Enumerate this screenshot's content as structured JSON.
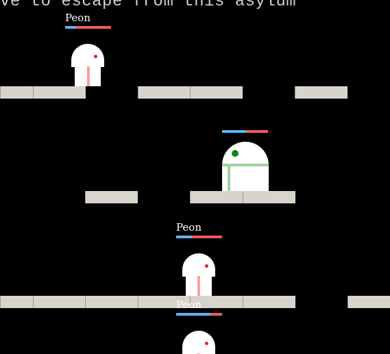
{
  "banner": {
    "text": "ve to escape from this asylum"
  },
  "colors": {
    "background": "#000000",
    "platform": "#d8d4cb",
    "mana": "#5fb4ef",
    "health": "#ef5b5b",
    "peon_eye": "#e0201e",
    "peon_stripe": "#ff9e9e",
    "boss_eye": "#0a8a1a",
    "boss_stripe": "#9fd19c"
  },
  "units": [
    {
      "name": "Peon",
      "kind": "peon",
      "mana": 0.24,
      "health": 0.76
    },
    {
      "name": "",
      "kind": "boss",
      "mana": 0.52,
      "health": 0.48
    },
    {
      "name": "Peon",
      "kind": "peon",
      "mana": 0.35,
      "health": 0.65
    },
    {
      "name": "Peon",
      "kind": "peon",
      "mana": 0.74,
      "health": 0.26
    }
  ]
}
